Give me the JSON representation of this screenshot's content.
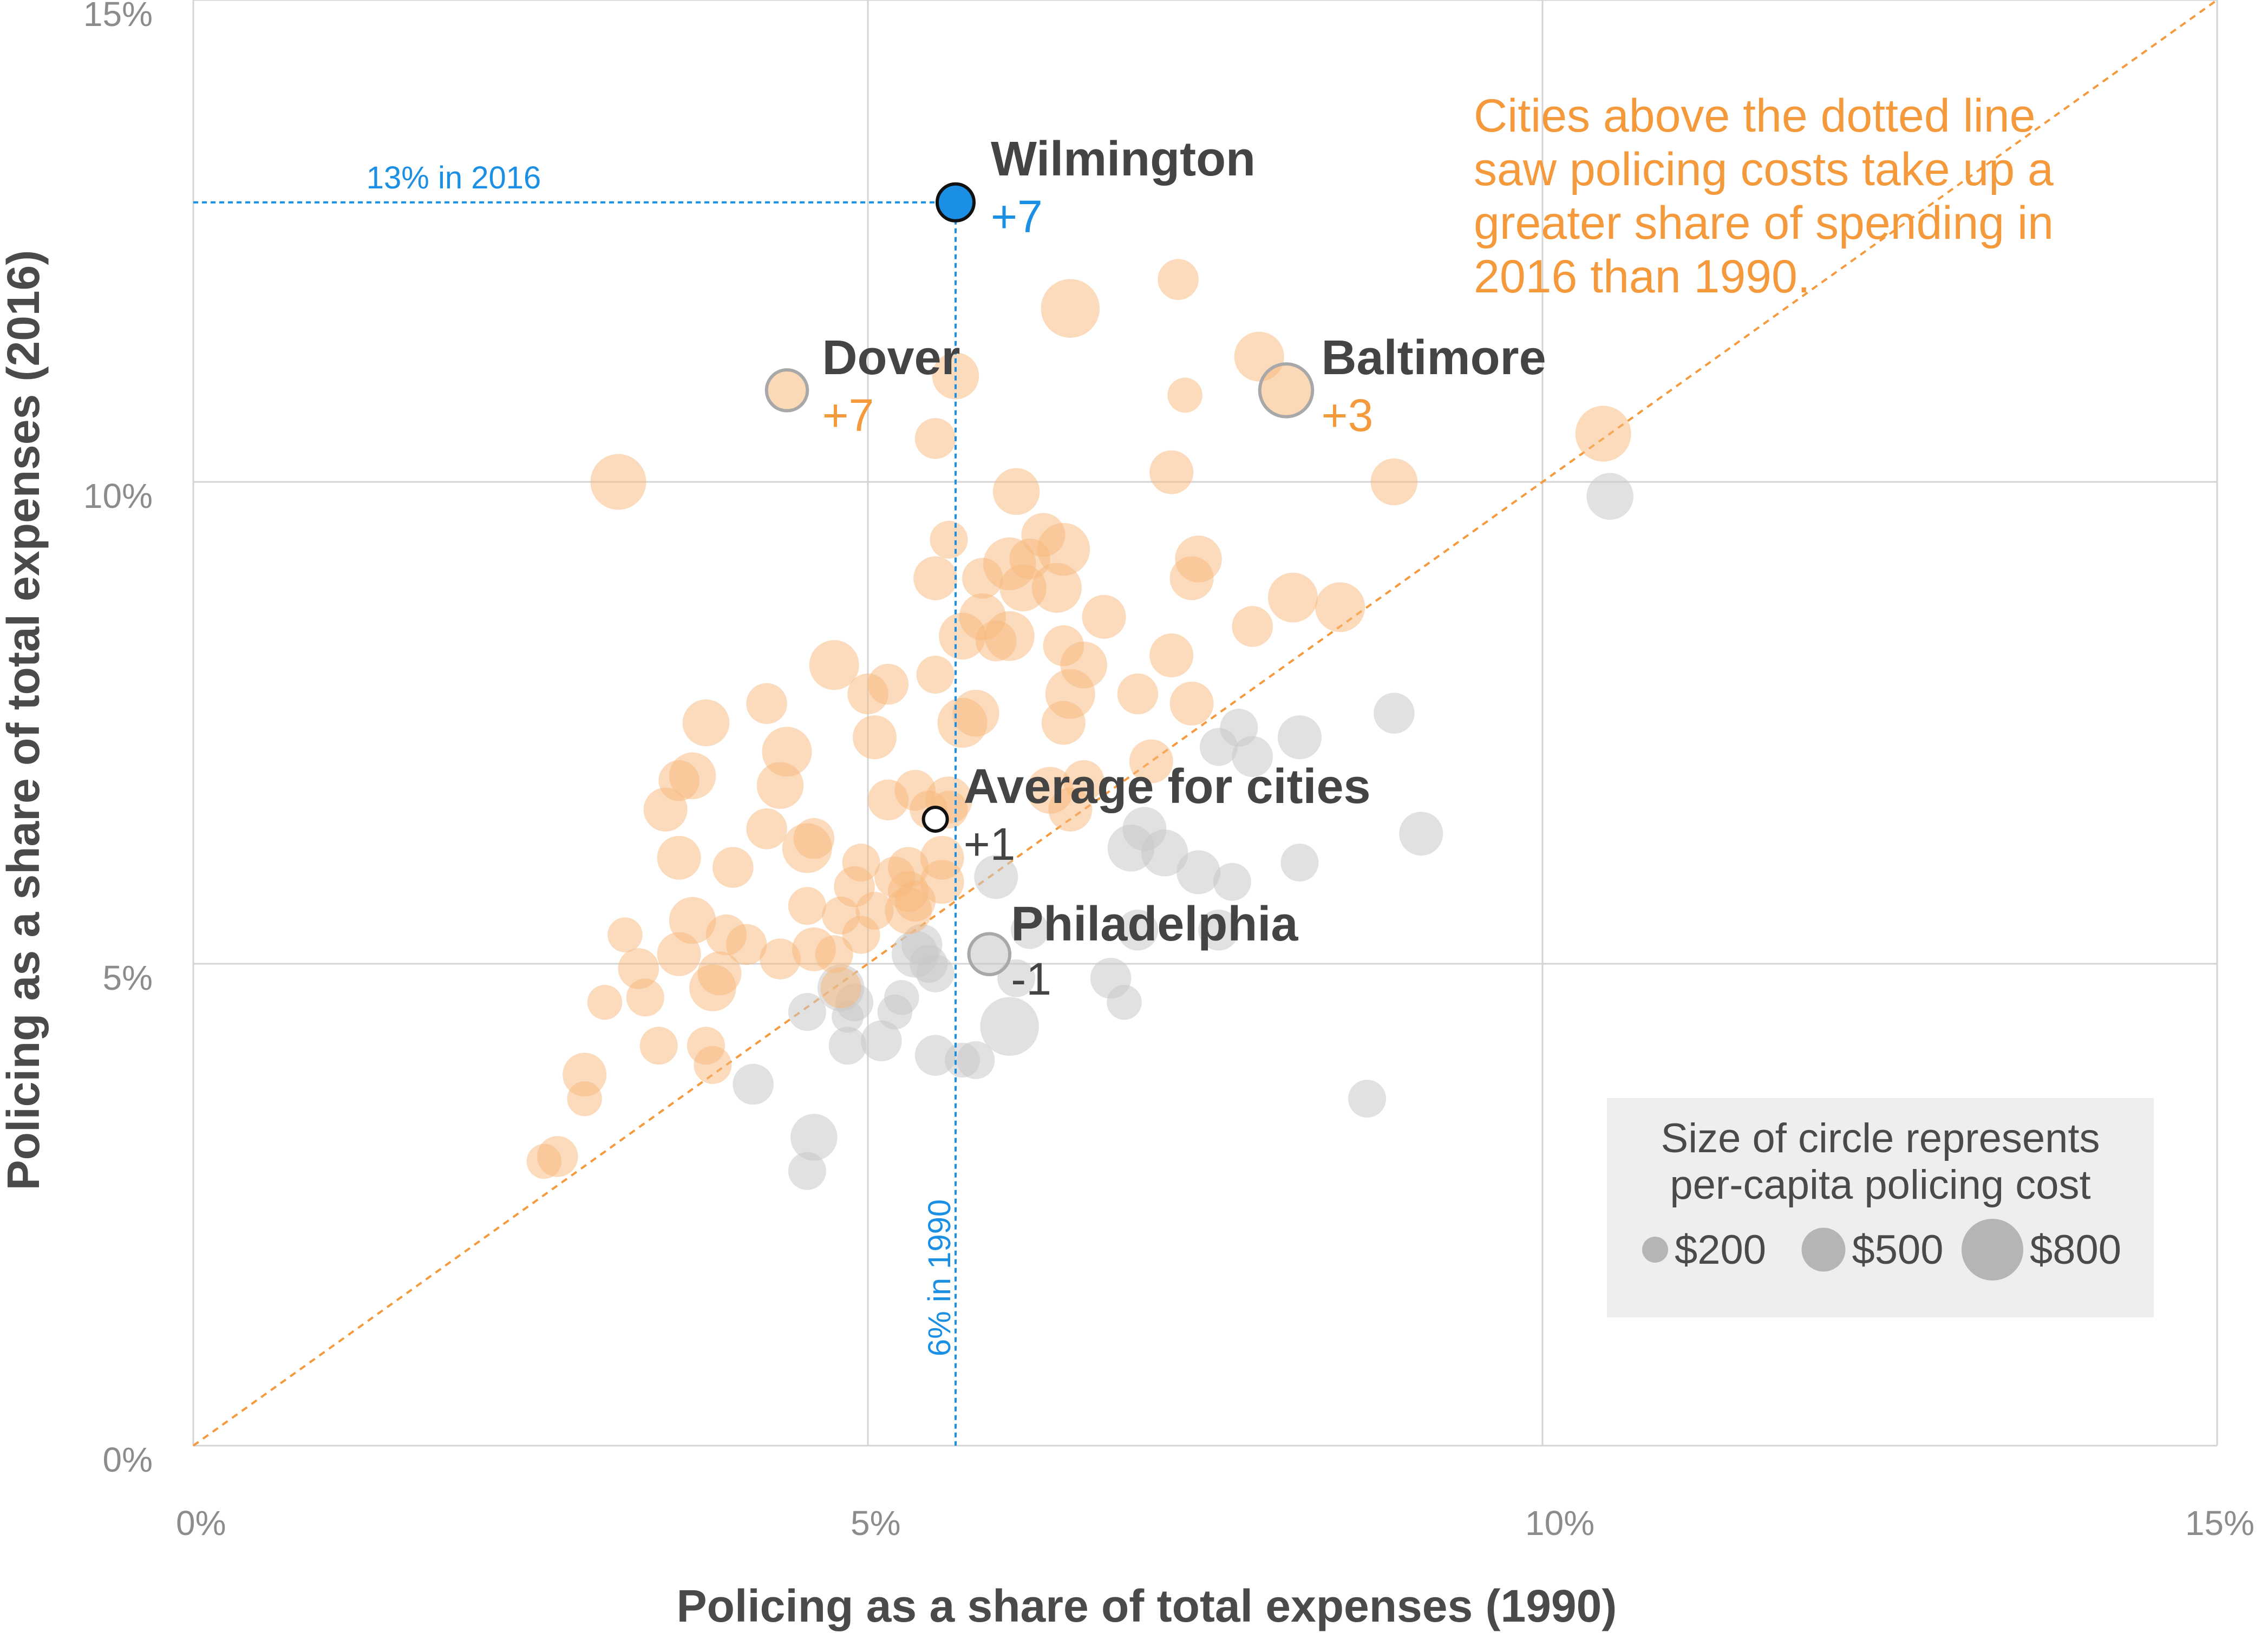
{
  "chart_data": {
    "type": "scatter",
    "xlabel": "Policing as a share of total expenses (1990)",
    "ylabel": "Policing as a share of total expenses (2016)",
    "xlim": [
      0,
      15
    ],
    "ylim": [
      0,
      15
    ],
    "x_ticks": [
      "0%",
      "5%",
      "10%",
      "15%"
    ],
    "y_ticks": [
      "0%",
      "5%",
      "10%",
      "15%"
    ],
    "grid": true,
    "colors": {
      "above_line": "#f8b87a",
      "below_line": "#c9c9c9",
      "highlight": "#1a8fe3",
      "diagonal": "#f59a3c",
      "text_dark": "#444444"
    },
    "annotation": {
      "text_lines": [
        "Cities above the dotted line",
        "saw policing costs take up a",
        "greater share of spending in",
        "2016 than 1990."
      ]
    },
    "reference_lines": {
      "y_label": "13% in 2016",
      "x_label": "6% in 1990"
    },
    "highlights": [
      {
        "name": "Wilmington",
        "delta": "+7",
        "x": 5.65,
        "y": 12.9,
        "cost": 550,
        "style": "highlight"
      },
      {
        "name": "Dover",
        "delta": "+7",
        "x": 4.4,
        "y": 10.95,
        "cost": 450,
        "style": "above"
      },
      {
        "name": "Baltimore",
        "delta": "+3",
        "x": 8.1,
        "y": 10.95,
        "cost": 650,
        "style": "above"
      },
      {
        "name": "Average for cities",
        "delta": "+1",
        "x": 5.5,
        "y": 6.5,
        "cost": 350,
        "style": "average"
      },
      {
        "name": "Philadelphia",
        "delta": "-1",
        "x": 5.9,
        "y": 5.1,
        "cost": 450,
        "style": "below"
      }
    ],
    "legend": {
      "title_lines": [
        "Size of circle represents",
        "per-capita policing cost"
      ],
      "items": [
        {
          "label": "$200",
          "cost": 200
        },
        {
          "label": "$500",
          "cost": 500
        },
        {
          "label": "$800",
          "cost": 800
        }
      ]
    },
    "points_above": [
      [
        7.3,
        12.1,
        450
      ],
      [
        6.5,
        11.8,
        750
      ],
      [
        7.35,
        10.9,
        350
      ],
      [
        7.9,
        11.3,
        600
      ],
      [
        5.65,
        11.1,
        550
      ],
      [
        5.5,
        10.45,
        450
      ],
      [
        10.45,
        10.5,
        700
      ],
      [
        3.15,
        10.0,
        700
      ],
      [
        8.9,
        10.0,
        550
      ],
      [
        7.25,
        10.1,
        500
      ],
      [
        6.1,
        9.9,
        550
      ],
      [
        5.6,
        9.4,
        400
      ],
      [
        6.3,
        9.45,
        500
      ],
      [
        6.45,
        9.3,
        650
      ],
      [
        6.2,
        9.2,
        450
      ],
      [
        6.05,
        9.15,
        650
      ],
      [
        7.45,
        9.2,
        550
      ],
      [
        5.5,
        9.0,
        500
      ],
      [
        5.85,
        9.0,
        450
      ],
      [
        6.15,
        8.9,
        550
      ],
      [
        6.4,
        8.9,
        600
      ],
      [
        7.4,
        9.0,
        500
      ],
      [
        8.15,
        8.8,
        600
      ],
      [
        8.5,
        8.7,
        600
      ],
      [
        5.85,
        8.6,
        550
      ],
      [
        5.7,
        8.4,
        550
      ],
      [
        6.05,
        8.4,
        600
      ],
      [
        5.95,
        8.35,
        450
      ],
      [
        6.45,
        8.3,
        450
      ],
      [
        6.75,
        8.6,
        500
      ],
      [
        6.6,
        8.1,
        550
      ],
      [
        7.25,
        8.2,
        500
      ],
      [
        7.85,
        8.5,
        450
      ],
      [
        5.15,
        7.9,
        450
      ],
      [
        5.5,
        8.0,
        400
      ],
      [
        4.75,
        8.1,
        600
      ],
      [
        5.0,
        7.8,
        450
      ],
      [
        6.5,
        7.8,
        600
      ],
      [
        7.0,
        7.8,
        450
      ],
      [
        5.8,
        7.6,
        550
      ],
      [
        5.7,
        7.5,
        600
      ],
      [
        6.45,
        7.5,
        500
      ],
      [
        7.4,
        7.7,
        500
      ],
      [
        3.8,
        7.5,
        550
      ],
      [
        4.25,
        7.7,
        450
      ],
      [
        4.4,
        7.2,
        600
      ],
      [
        5.05,
        7.35,
        500
      ],
      [
        3.7,
        6.95,
        550
      ],
      [
        3.6,
        6.9,
        450
      ],
      [
        4.35,
        6.85,
        550
      ],
      [
        5.15,
        6.7,
        450
      ],
      [
        5.35,
        6.8,
        450
      ],
      [
        5.6,
        6.6,
        400
      ],
      [
        6.35,
        6.8,
        550
      ],
      [
        6.6,
        6.9,
        450
      ],
      [
        7.1,
        7.1,
        500
      ],
      [
        6.5,
        6.6,
        500
      ],
      [
        5.45,
        6.6,
        400
      ],
      [
        5.6,
        6.7,
        550
      ],
      [
        3.5,
        6.6,
        500
      ],
      [
        4.25,
        6.4,
        450
      ],
      [
        4.6,
        6.3,
        450
      ],
      [
        4.55,
        6.2,
        600
      ],
      [
        3.6,
        6.1,
        500
      ],
      [
        5.3,
        6.0,
        450
      ],
      [
        5.55,
        6.1,
        500
      ],
      [
        4.0,
        6.0,
        450
      ],
      [
        4.95,
        6.05,
        400
      ],
      [
        5.2,
        5.9,
        450
      ],
      [
        4.9,
        5.8,
        450
      ],
      [
        5.55,
        5.85,
        500
      ],
      [
        5.3,
        5.75,
        450
      ],
      [
        4.55,
        5.6,
        400
      ],
      [
        5.35,
        5.65,
        450
      ],
      [
        5.3,
        5.55,
        550
      ],
      [
        5.05,
        5.55,
        400
      ],
      [
        4.8,
        5.5,
        400
      ],
      [
        3.95,
        5.3,
        450
      ],
      [
        3.7,
        5.45,
        550
      ],
      [
        4.1,
        5.2,
        450
      ],
      [
        4.95,
        5.3,
        400
      ],
      [
        3.2,
        5.3,
        350
      ],
      [
        4.6,
        5.15,
        500
      ],
      [
        4.75,
        5.1,
        400
      ],
      [
        3.6,
        5.1,
        500
      ],
      [
        4.35,
        5.05,
        450
      ],
      [
        3.9,
        4.9,
        500
      ],
      [
        3.85,
        4.75,
        550
      ],
      [
        3.3,
        4.95,
        450
      ],
      [
        3.35,
        4.65,
        400
      ],
      [
        3.05,
        4.6,
        350
      ],
      [
        3.45,
        4.15,
        400
      ],
      [
        3.8,
        4.15,
        400
      ],
      [
        3.85,
        3.95,
        400
      ],
      [
        2.9,
        3.85,
        500
      ],
      [
        2.9,
        3.6,
        350
      ],
      [
        2.7,
        3.0,
        450
      ],
      [
        2.6,
        2.95,
        350
      ],
      [
        4.8,
        4.75,
        450
      ]
    ],
    "points_below": [
      [
        10.5,
        9.85,
        550
      ],
      [
        8.9,
        7.6,
        450
      ],
      [
        7.75,
        7.45,
        400
      ],
      [
        7.6,
        7.25,
        400
      ],
      [
        7.85,
        7.15,
        450
      ],
      [
        8.2,
        7.35,
        500
      ],
      [
        9.1,
        6.35,
        500
      ],
      [
        7.05,
        6.4,
        500
      ],
      [
        6.95,
        6.2,
        550
      ],
      [
        7.2,
        6.15,
        550
      ],
      [
        8.2,
        6.05,
        400
      ],
      [
        7.45,
        5.95,
        500
      ],
      [
        7.7,
        5.85,
        400
      ],
      [
        5.95,
        5.9,
        500
      ],
      [
        7.0,
        5.35,
        450
      ],
      [
        6.2,
        5.35,
        400
      ],
      [
        7.6,
        5.35,
        450
      ],
      [
        5.35,
        5.1,
        550
      ],
      [
        5.4,
        5.2,
        450
      ],
      [
        5.5,
        4.9,
        400
      ],
      [
        5.45,
        5.0,
        400
      ],
      [
        6.1,
        4.85,
        400
      ],
      [
        6.8,
        4.85,
        450
      ],
      [
        6.9,
        4.6,
        350
      ],
      [
        4.8,
        4.75,
        550
      ],
      [
        4.9,
        4.6,
        400
      ],
      [
        4.55,
        4.5,
        400
      ],
      [
        5.25,
        4.65,
        350
      ],
      [
        5.2,
        4.5,
        350
      ],
      [
        4.85,
        4.45,
        300
      ],
      [
        6.05,
        4.35,
        750
      ],
      [
        5.1,
        4.2,
        450
      ],
      [
        4.85,
        4.15,
        400
      ],
      [
        5.5,
        4.05,
        450
      ],
      [
        5.8,
        4.0,
        400
      ],
      [
        4.15,
        3.75,
        450
      ],
      [
        8.7,
        3.6,
        400
      ],
      [
        4.6,
        3.2,
        550
      ],
      [
        4.55,
        2.85,
        400
      ],
      [
        5.7,
        4.0,
        350
      ]
    ]
  }
}
